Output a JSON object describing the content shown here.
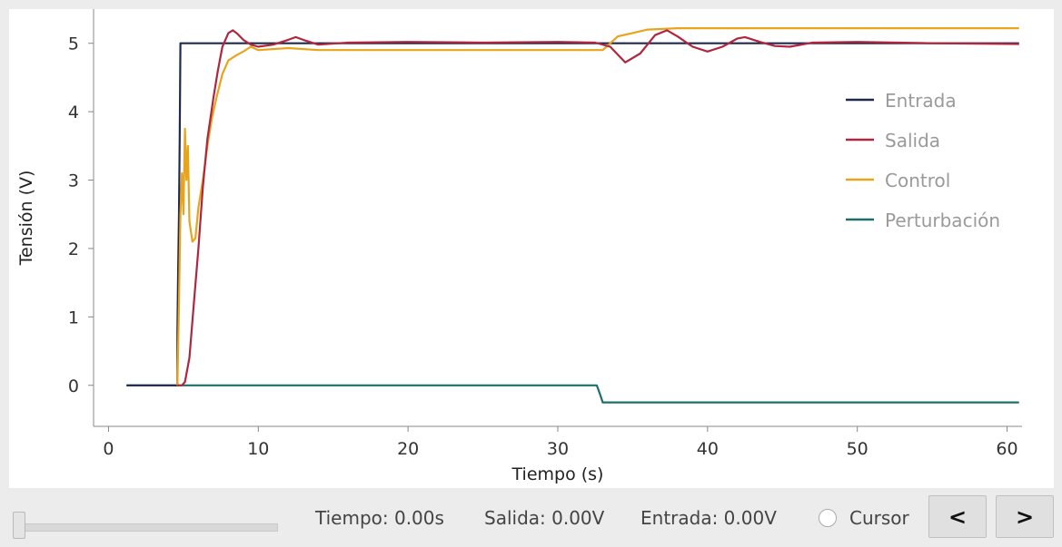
{
  "chart_data": {
    "type": "line",
    "title": "",
    "xlabel": "Tiempo (s)",
    "ylabel": "Tensión (V)",
    "xlim": [
      -1,
      61
    ],
    "ylim": [
      -0.6,
      5.5
    ],
    "xticks": [
      0,
      10,
      20,
      30,
      40,
      50,
      60
    ],
    "yticks": [
      0,
      1,
      2,
      3,
      4,
      5
    ],
    "grid": false,
    "legend_position": "top-right",
    "series": [
      {
        "name": "Entrada",
        "color": "#1f2a4c",
        "points": [
          [
            1.2,
            0
          ],
          [
            4.6,
            0
          ],
          [
            4.6,
            0.8
          ],
          [
            4.65,
            1.7
          ],
          [
            4.7,
            2.5
          ],
          [
            4.75,
            3.6
          ],
          [
            4.8,
            5.0
          ],
          [
            60.8,
            5.0
          ]
        ]
      },
      {
        "name": "Salida",
        "color": "#b0263e",
        "points": [
          [
            4.6,
            0
          ],
          [
            4.9,
            0
          ],
          [
            5.1,
            0.05
          ],
          [
            5.4,
            0.4
          ],
          [
            5.7,
            1.2
          ],
          [
            6.0,
            2.0
          ],
          [
            6.3,
            2.9
          ],
          [
            6.6,
            3.6
          ],
          [
            7.0,
            4.2
          ],
          [
            7.3,
            4.6
          ],
          [
            7.6,
            4.95
          ],
          [
            8.0,
            5.15
          ],
          [
            8.3,
            5.19
          ],
          [
            8.6,
            5.14
          ],
          [
            9.0,
            5.05
          ],
          [
            9.5,
            4.98
          ],
          [
            10.0,
            4.95
          ],
          [
            11.0,
            4.98
          ],
          [
            12.0,
            5.05
          ],
          [
            12.5,
            5.09
          ],
          [
            13.0,
            5.05
          ],
          [
            14.0,
            4.98
          ],
          [
            16.0,
            5.01
          ],
          [
            20.0,
            5.02
          ],
          [
            25.0,
            5.01
          ],
          [
            30.0,
            5.02
          ],
          [
            32.5,
            5.01
          ],
          [
            33.5,
            4.95
          ],
          [
            34.5,
            4.72
          ],
          [
            35.5,
            4.85
          ],
          [
            36.5,
            5.12
          ],
          [
            37.3,
            5.19
          ],
          [
            38.0,
            5.1
          ],
          [
            39.0,
            4.95
          ],
          [
            40.0,
            4.88
          ],
          [
            41.0,
            4.95
          ],
          [
            42.0,
            5.07
          ],
          [
            42.5,
            5.09
          ],
          [
            43.5,
            5.02
          ],
          [
            44.5,
            4.96
          ],
          [
            45.5,
            4.95
          ],
          [
            47.0,
            5.01
          ],
          [
            50.0,
            5.02
          ],
          [
            55.0,
            5.0
          ],
          [
            60.8,
            4.99
          ]
        ]
      },
      {
        "name": "Control",
        "color": "#e8a41c",
        "points": [
          [
            4.6,
            0
          ],
          [
            4.7,
            1.2
          ],
          [
            4.8,
            2.5
          ],
          [
            4.9,
            3.1
          ],
          [
            5.0,
            2.5
          ],
          [
            5.1,
            3.75
          ],
          [
            5.2,
            3.0
          ],
          [
            5.3,
            3.5
          ],
          [
            5.4,
            2.4
          ],
          [
            5.6,
            2.1
          ],
          [
            5.8,
            2.15
          ],
          [
            6.0,
            2.6
          ],
          [
            6.3,
            3.0
          ],
          [
            6.6,
            3.5
          ],
          [
            6.9,
            3.9
          ],
          [
            7.2,
            4.2
          ],
          [
            7.6,
            4.55
          ],
          [
            8.0,
            4.75
          ],
          [
            8.5,
            4.82
          ],
          [
            9.0,
            4.88
          ],
          [
            9.5,
            4.95
          ],
          [
            10.0,
            4.9
          ],
          [
            12.0,
            4.93
          ],
          [
            14.0,
            4.9
          ],
          [
            20.0,
            4.9
          ],
          [
            25.0,
            4.9
          ],
          [
            30.0,
            4.9
          ],
          [
            33.0,
            4.9
          ],
          [
            33.5,
            5.0
          ],
          [
            34.0,
            5.1
          ],
          [
            35.0,
            5.15
          ],
          [
            36.0,
            5.2
          ],
          [
            38.0,
            5.22
          ],
          [
            45.0,
            5.22
          ],
          [
            55.0,
            5.22
          ],
          [
            60.8,
            5.22
          ]
        ]
      },
      {
        "name": "Perturbación",
        "color": "#1e6f6a",
        "points": [
          [
            1.2,
            0
          ],
          [
            32.6,
            0
          ],
          [
            32.8,
            -0.12
          ],
          [
            33.0,
            -0.25
          ],
          [
            60.8,
            -0.25
          ]
        ]
      }
    ]
  },
  "controls": {
    "slider_value": 0,
    "tiempo_readout": "Tiempo: 0.00s",
    "salida_readout": "Salida: 0.00V",
    "entrada_readout": "Entrada: 0.00V",
    "cursor_label": "Cursor",
    "prev_label": "<",
    "next_label": ">"
  }
}
